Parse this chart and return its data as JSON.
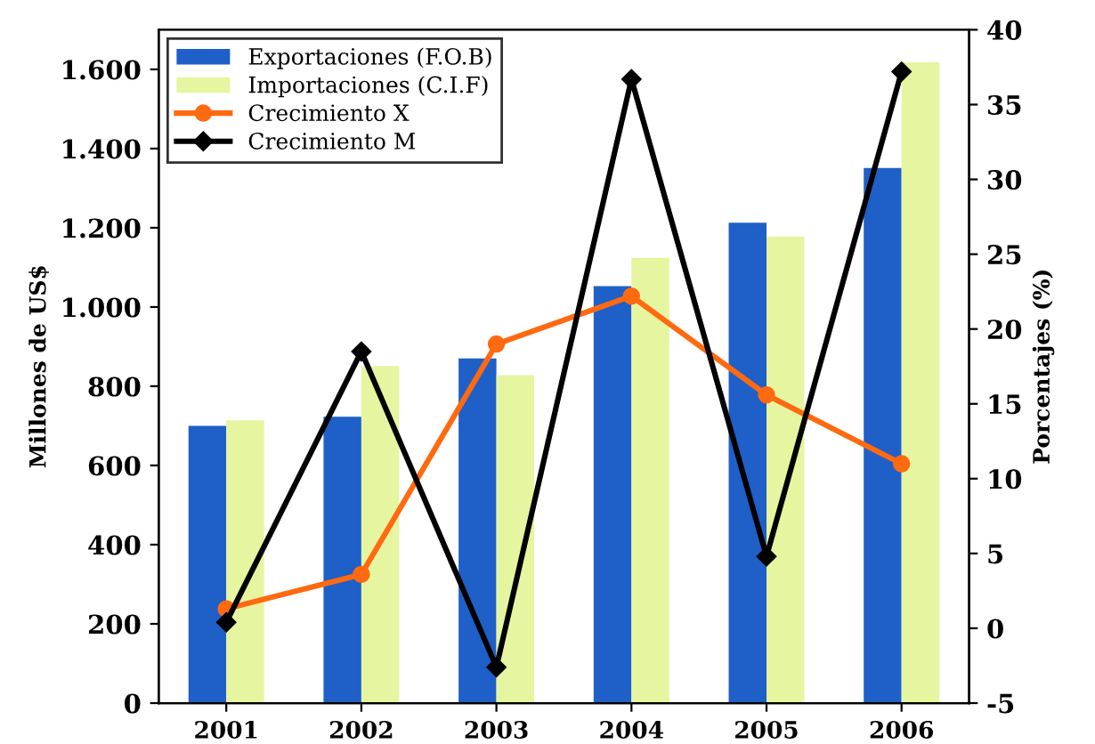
{
  "chart_data": {
    "type": "bar",
    "ylabel": "Millones de US$",
    "y2label": "Porcentajes (%)",
    "categories": [
      "2001",
      "2002",
      "2003",
      "2004",
      "2005",
      "2006"
    ],
    "series": [
      {
        "name": "Exportaciones (F.O.B)",
        "color": "#1f5fc8",
        "values": [
          700,
          723,
          870,
          1053,
          1213,
          1351
        ]
      },
      {
        "name": "Importaciones (C.I.F)",
        "color": "#e6f5a0",
        "values": [
          714,
          851,
          828,
          1124,
          1178,
          1618
        ]
      },
      {
        "name": "Crecimiento X",
        "type": "line",
        "axis": "y2",
        "color": "#ff6a10",
        "marker": "circle",
        "values": [
          1.3,
          3.6,
          19.0,
          22.2,
          15.6,
          11.0
        ]
      },
      {
        "name": "Crecimiento M",
        "type": "line",
        "axis": "y2",
        "color": "#000000",
        "marker": "diamond",
        "values": [
          0.4,
          18.5,
          -2.6,
          36.7,
          4.8,
          37.2
        ]
      }
    ],
    "ylim": [
      0,
      1700
    ],
    "yticks": [
      0,
      {
        "value": 200,
        "label": "200"
      },
      {
        "value": 400,
        "label": "400"
      },
      {
        "value": 600,
        "label": "600"
      },
      {
        "value": 800,
        "label": "800"
      },
      {
        "value": 1000,
        "label": "1.000"
      },
      {
        "value": 1200,
        "label": "1.200"
      },
      {
        "value": 1400,
        "label": "1.400"
      },
      {
        "value": 1600,
        "label": "1.600"
      }
    ],
    "y2lim": [
      -5,
      40
    ],
    "y2ticks": [
      -5,
      0,
      5,
      10,
      15,
      20,
      25,
      30,
      35,
      40
    ],
    "legend": "top left",
    "grid": false
  }
}
